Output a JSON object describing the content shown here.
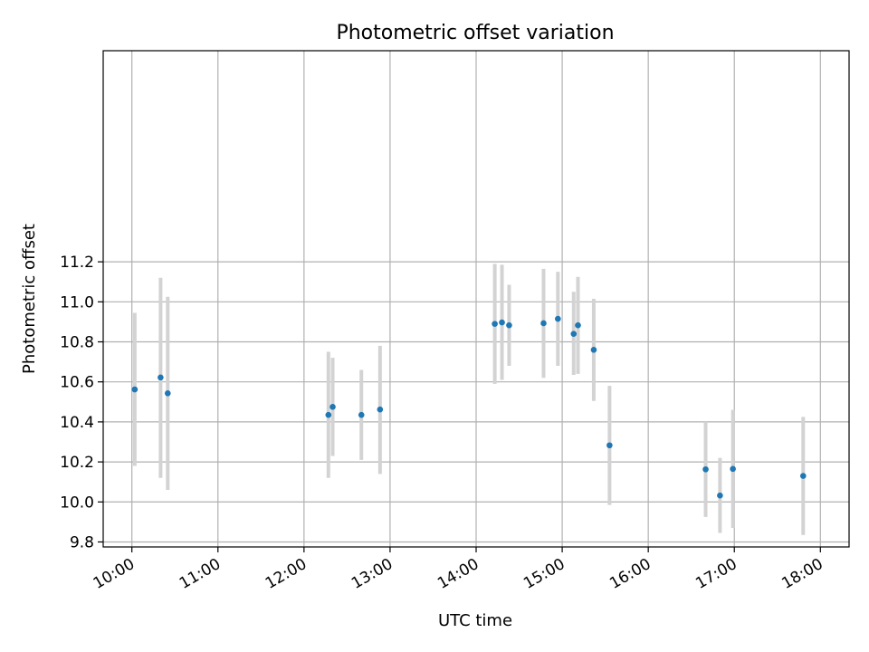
{
  "chart_data": {
    "type": "scatter",
    "title": "Photometric offset variation",
    "xlabel": "UTC time",
    "ylabel": "Photometric offset",
    "xlim": [
      "09:40",
      "18:20"
    ],
    "ylim": [
      9.775,
      12.255
    ],
    "x_ticks": [
      "10:00",
      "11:00",
      "12:00",
      "13:00",
      "14:00",
      "15:00",
      "16:00",
      "17:00",
      "18:00"
    ],
    "y_ticks": [
      9.8,
      10.0,
      10.2,
      10.4,
      10.6,
      10.8,
      11.0,
      11.2
    ],
    "grid": true,
    "marker_color": "#1f77b4",
    "errorbar_color": "#d3d3d3",
    "series": [
      {
        "points": [
          {
            "x": "10:02",
            "y": 10.562,
            "ylow": 10.18,
            "yhigh": 10.945
          },
          {
            "x": "10:20",
            "y": 10.622,
            "ylow": 10.12,
            "yhigh": 11.12
          },
          {
            "x": "10:25",
            "y": 10.543,
            "ylow": 10.06,
            "yhigh": 11.025
          },
          {
            "x": "12:17",
            "y": 10.435,
            "ylow": 10.12,
            "yhigh": 10.75
          },
          {
            "x": "12:20",
            "y": 10.475,
            "ylow": 10.23,
            "yhigh": 10.72
          },
          {
            "x": "12:40",
            "y": 10.435,
            "ylow": 10.21,
            "yhigh": 10.66
          },
          {
            "x": "12:53",
            "y": 10.462,
            "ylow": 10.14,
            "yhigh": 10.78
          },
          {
            "x": "14:13",
            "y": 10.89,
            "ylow": 10.59,
            "yhigh": 11.19
          },
          {
            "x": "14:18",
            "y": 10.897,
            "ylow": 10.61,
            "yhigh": 11.185
          },
          {
            "x": "14:23",
            "y": 10.883,
            "ylow": 10.68,
            "yhigh": 11.085
          },
          {
            "x": "14:47",
            "y": 10.893,
            "ylow": 10.62,
            "yhigh": 11.165
          },
          {
            "x": "14:57",
            "y": 10.915,
            "ylow": 10.68,
            "yhigh": 11.15
          },
          {
            "x": "15:08",
            "y": 10.84,
            "ylow": 10.635,
            "yhigh": 11.05
          },
          {
            "x": "15:11",
            "y": 10.883,
            "ylow": 10.64,
            "yhigh": 11.125
          },
          {
            "x": "15:22",
            "y": 10.76,
            "ylow": 10.505,
            "yhigh": 11.015
          },
          {
            "x": "15:33",
            "y": 10.283,
            "ylow": 9.985,
            "yhigh": 10.58
          },
          {
            "x": "16:40",
            "y": 10.163,
            "ylow": 9.925,
            "yhigh": 10.4
          },
          {
            "x": "16:50",
            "y": 10.032,
            "ylow": 9.845,
            "yhigh": 10.22
          },
          {
            "x": "16:59",
            "y": 10.165,
            "ylow": 9.87,
            "yhigh": 10.46
          },
          {
            "x": "17:48",
            "y": 10.13,
            "ylow": 9.835,
            "yhigh": 10.425
          }
        ]
      }
    ]
  }
}
